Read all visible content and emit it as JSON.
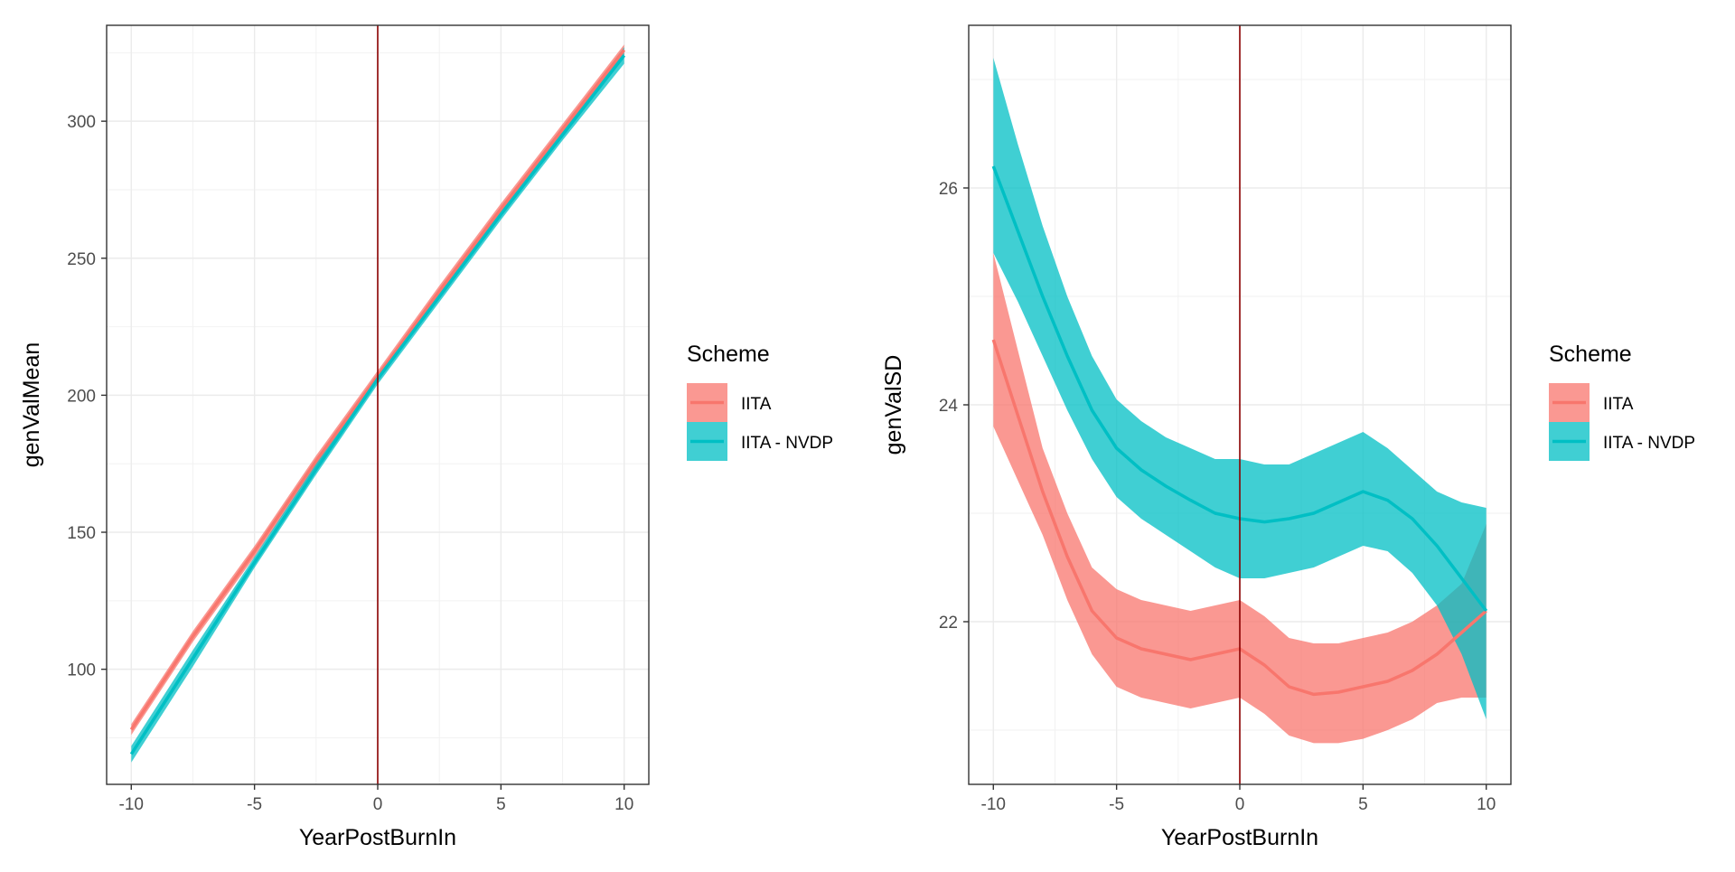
{
  "chart_data": [
    {
      "type": "line",
      "xlabel": "YearPostBurnIn",
      "ylabel": "genValMean",
      "xlim": [
        -11,
        11
      ],
      "ylim": [
        58,
        335
      ],
      "xticks": [
        -10,
        -5,
        0,
        5,
        10
      ],
      "xtick_labels": [
        "-10",
        "-5",
        "0",
        "5",
        "10"
      ],
      "yticks": [
        100,
        150,
        200,
        250,
        300
      ],
      "ytick_labels": [
        "100",
        "150",
        "200",
        "250",
        "300"
      ],
      "grid": true,
      "vline": 0,
      "legend": {
        "title": "Scheme",
        "placement": "right"
      },
      "x": [
        -10,
        -7.5,
        -5,
        -2.5,
        0,
        2.5,
        5,
        7.5,
        10
      ],
      "series": [
        {
          "name": "IITA",
          "color": "#F8766D",
          "values": [
            78,
            112,
            143,
            176,
            207,
            238,
            268,
            297,
            326
          ],
          "lower": [
            76,
            110,
            141,
            174,
            205,
            236,
            266,
            295,
            323
          ],
          "upper": [
            80,
            114,
            145,
            178,
            209,
            240,
            270,
            299,
            328
          ]
        },
        {
          "name": "IITA - NVDP",
          "color": "#00BFC4",
          "values": [
            69,
            104,
            139,
            173,
            206,
            236,
            266,
            295,
            324
          ],
          "lower": [
            66,
            101,
            137,
            171,
            204,
            234,
            264,
            293,
            321
          ],
          "upper": [
            72,
            107,
            141,
            175,
            208,
            238,
            268,
            297,
            327
          ]
        }
      ]
    },
    {
      "type": "line",
      "xlabel": "YearPostBurnIn",
      "ylabel": "genValSD",
      "xlim": [
        -11,
        11
      ],
      "ylim": [
        20.5,
        27.5
      ],
      "xticks": [
        -10,
        -5,
        0,
        5,
        10
      ],
      "xtick_labels": [
        "-10",
        "-5",
        "0",
        "5",
        "10"
      ],
      "yticks": [
        22,
        24,
        26
      ],
      "ytick_labels": [
        "22",
        "24",
        "26"
      ],
      "grid": true,
      "vline": 0,
      "legend": {
        "title": "Scheme",
        "placement": "right"
      },
      "x": [
        -10,
        -9,
        -8,
        -7,
        -6,
        -5,
        -4,
        -3,
        -2,
        -1,
        0,
        1,
        2,
        3,
        4,
        5,
        6,
        7,
        8,
        9,
        10
      ],
      "series": [
        {
          "name": "IITA",
          "color": "#F8766D",
          "values": [
            24.6,
            23.9,
            23.2,
            22.6,
            22.1,
            21.85,
            21.75,
            21.7,
            21.65,
            21.7,
            21.75,
            21.6,
            21.4,
            21.33,
            21.35,
            21.4,
            21.45,
            21.55,
            21.7,
            21.9,
            22.1
          ],
          "lower": [
            23.8,
            23.3,
            22.8,
            22.2,
            21.7,
            21.4,
            21.3,
            21.25,
            21.2,
            21.25,
            21.3,
            21.15,
            20.95,
            20.88,
            20.88,
            20.92,
            21.0,
            21.1,
            21.25,
            21.3,
            21.3
          ],
          "upper": [
            25.4,
            24.5,
            23.6,
            23.0,
            22.5,
            22.3,
            22.2,
            22.15,
            22.1,
            22.15,
            22.2,
            22.05,
            21.85,
            21.8,
            21.8,
            21.85,
            21.9,
            22.0,
            22.15,
            22.35,
            22.9
          ]
        },
        {
          "name": "IITA - NVDP",
          "color": "#00BFC4",
          "values": [
            26.2,
            25.6,
            25.0,
            24.45,
            23.95,
            23.6,
            23.4,
            23.25,
            23.12,
            23.0,
            22.95,
            22.92,
            22.95,
            23.0,
            23.1,
            23.2,
            23.12,
            22.95,
            22.7,
            22.4,
            22.1
          ],
          "lower": [
            25.4,
            24.95,
            24.45,
            23.95,
            23.5,
            23.15,
            22.95,
            22.8,
            22.65,
            22.5,
            22.4,
            22.4,
            22.45,
            22.5,
            22.6,
            22.7,
            22.65,
            22.45,
            22.15,
            21.7,
            21.1
          ],
          "upper": [
            27.2,
            26.4,
            25.65,
            25.0,
            24.45,
            24.05,
            23.85,
            23.7,
            23.6,
            23.5,
            23.5,
            23.45,
            23.45,
            23.55,
            23.65,
            23.75,
            23.6,
            23.4,
            23.2,
            23.1,
            23.05
          ]
        }
      ]
    }
  ]
}
